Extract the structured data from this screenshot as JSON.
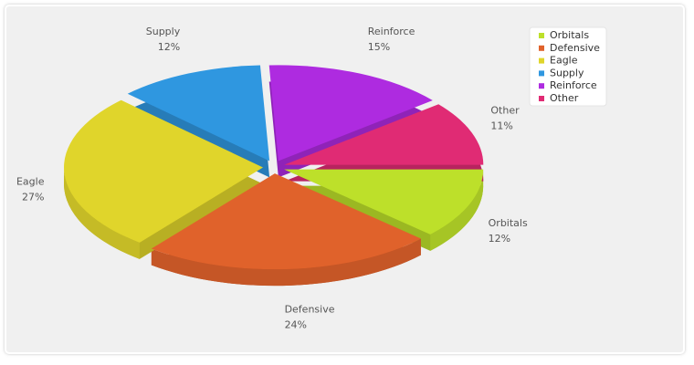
{
  "chart_data": {
    "type": "pie3d",
    "categories": [
      "Orbitals",
      "Defensive",
      "Eagle",
      "Supply",
      "Reinforce",
      "Other"
    ],
    "values": [
      12,
      24,
      27,
      12,
      15,
      11
    ],
    "value_labels": [
      "12%",
      "24%",
      "27%",
      "12%",
      "15%",
      "11%"
    ],
    "colors": [
      "#bde02a",
      "#e0622b",
      "#e0d52b",
      "#2f97e0",
      "#ae2be0",
      "#e02b74"
    ],
    "legend": "top-right"
  }
}
